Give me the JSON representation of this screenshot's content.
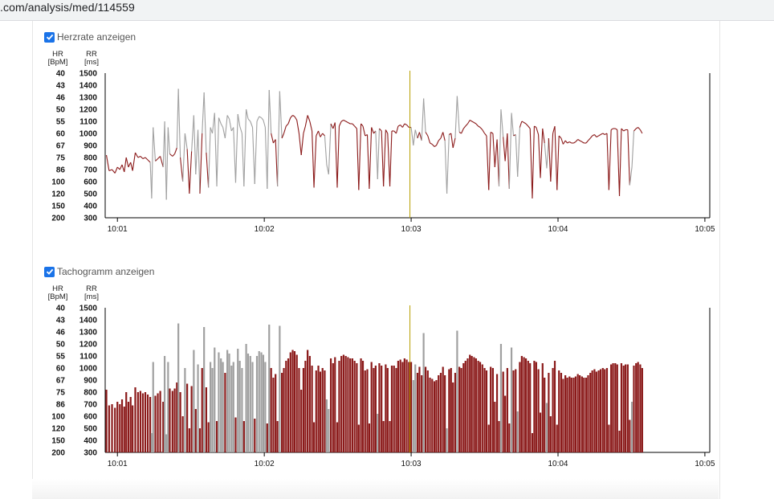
{
  "browser": {
    "url": ".com/analysis/med/114559"
  },
  "hr_panel": {
    "checkbox_label": "Herzrate anzeigen",
    "checked": true,
    "hr_unit": "HR\n[BpM]",
    "rr_unit": "RR\n[ms]"
  },
  "tacho_panel": {
    "checkbox_label": "Tachogramm anzeigen",
    "checked": true,
    "hr_unit": "HR\n[BpM]",
    "rr_unit": "RR\n[ms]"
  },
  "colors": {
    "normal": "#8b1a1a",
    "artifact": "#a0a0a0",
    "cursor": "#b8a000",
    "checkbox": "#1a73e8"
  },
  "chart_data": [
    {
      "type": "line",
      "title": "",
      "y_ticks_rr": [
        "1500",
        "1400",
        "1300",
        "1200",
        "1100",
        "1000",
        "900",
        "800",
        "700",
        "600",
        "500",
        "400",
        "300"
      ],
      "y_ticks_hr": [
        "40",
        "43",
        "46",
        "50",
        "55",
        "60",
        "67",
        "75",
        "86",
        "100",
        "120",
        "150",
        "200"
      ],
      "ylim": [
        300,
        1500
      ],
      "x_ticks": [
        "10:01",
        "10:02",
        "10:03",
        "10:04",
        "10:05"
      ],
      "x_tick_seconds": [
        60,
        120,
        180,
        240,
        300
      ],
      "xlim": [
        55,
        302
      ],
      "cursor_seconds": 179.5,
      "series": []
    },
    {
      "type": "bar",
      "title": "",
      "y_ticks_rr": [
        "1500",
        "1400",
        "1300",
        "1200",
        "1100",
        "1000",
        "900",
        "800",
        "700",
        "600",
        "500",
        "400",
        "300"
      ],
      "y_ticks_hr": [
        "40",
        "43",
        "46",
        "50",
        "55",
        "60",
        "67",
        "75",
        "86",
        "100",
        "120",
        "150",
        "200"
      ],
      "ylim": [
        300,
        1500
      ],
      "x_ticks": [
        "10:01",
        "10:02",
        "10:03",
        "10:04",
        "10:05"
      ],
      "x_tick_seconds": [
        60,
        120,
        180,
        240,
        300
      ],
      "xlim": [
        55,
        302
      ],
      "cursor_seconds": 179.5
    }
  ],
  "rr_samples": [
    {
      "t": 55.5,
      "rr": 820,
      "a": 0
    },
    {
      "t": 56.6,
      "rr": 690,
      "a": 0
    },
    {
      "t": 57.8,
      "rr": 700,
      "a": 0
    },
    {
      "t": 59.0,
      "rr": 670,
      "a": 0
    },
    {
      "t": 60.0,
      "rr": 720,
      "a": 0
    },
    {
      "t": 61.0,
      "rr": 700,
      "a": 0
    },
    {
      "t": 61.9,
      "rr": 740,
      "a": 0
    },
    {
      "t": 62.8,
      "rr": 680,
      "a": 0
    },
    {
      "t": 63.6,
      "rr": 800,
      "a": 0
    },
    {
      "t": 64.5,
      "rr": 720,
      "a": 0
    },
    {
      "t": 65.4,
      "rr": 760,
      "a": 0
    },
    {
      "t": 66.2,
      "rr": 690,
      "a": 0
    },
    {
      "t": 67.3,
      "rr": 840,
      "a": 0
    },
    {
      "t": 68.4,
      "rr": 800,
      "a": 0
    },
    {
      "t": 69.4,
      "rr": 810,
      "a": 0
    },
    {
      "t": 70.4,
      "rr": 790,
      "a": 0
    },
    {
      "t": 71.4,
      "rr": 800,
      "a": 0
    },
    {
      "t": 72.4,
      "rr": 780,
      "a": 0
    },
    {
      "t": 73.4,
      "rr": 760,
      "a": 0
    },
    {
      "t": 74.0,
      "rr": 460,
      "a": 1
    },
    {
      "t": 74.6,
      "rr": 1050,
      "a": 1
    },
    {
      "t": 75.5,
      "rr": 770,
      "a": 0
    },
    {
      "t": 76.5,
      "rr": 790,
      "a": 0
    },
    {
      "t": 77.5,
      "rr": 810,
      "a": 0
    },
    {
      "t": 78.7,
      "rr": 720,
      "a": 0
    },
    {
      "t": 79.3,
      "rr": 1100,
      "a": 1
    },
    {
      "t": 80.0,
      "rr": 450,
      "a": 1
    },
    {
      "t": 80.7,
      "rr": 1050,
      "a": 1
    },
    {
      "t": 81.4,
      "rr": 830,
      "a": 0
    },
    {
      "t": 82.5,
      "rr": 810,
      "a": 0
    },
    {
      "t": 83.4,
      "rr": 830,
      "a": 0
    },
    {
      "t": 84.3,
      "rr": 880,
      "a": 0
    },
    {
      "t": 84.9,
      "rr": 1370,
      "a": 1
    },
    {
      "t": 85.7,
      "rr": 800,
      "a": 0
    },
    {
      "t": 86.7,
      "rr": 600,
      "a": 0
    },
    {
      "t": 87.6,
      "rr": 1000,
      "a": 1
    },
    {
      "t": 88.5,
      "rr": 870,
      "a": 0
    },
    {
      "t": 89.4,
      "rr": 500,
      "a": 0
    },
    {
      "t": 90.3,
      "rr": 850,
      "a": 0
    },
    {
      "t": 91.2,
      "rr": 1150,
      "a": 1
    },
    {
      "t": 92.0,
      "rr": 660,
      "a": 0
    },
    {
      "t": 92.9,
      "rr": 1030,
      "a": 1
    },
    {
      "t": 93.7,
      "rr": 500,
      "a": 0
    },
    {
      "t": 94.6,
      "rr": 1000,
      "a": 0
    },
    {
      "t": 95.4,
      "rr": 1340,
      "a": 1
    },
    {
      "t": 96.3,
      "rr": 840,
      "a": 0
    },
    {
      "t": 97.2,
      "rr": 550,
      "a": 0
    },
    {
      "t": 98.0,
      "rr": 1050,
      "a": 1
    },
    {
      "t": 98.8,
      "rr": 1000,
      "a": 1
    },
    {
      "t": 99.7,
      "rr": 1170,
      "a": 1
    },
    {
      "t": 100.6,
      "rr": 560,
      "a": 0
    },
    {
      "t": 101.4,
      "rr": 1130,
      "a": 1
    },
    {
      "t": 102.3,
      "rr": 1080,
      "a": 1
    },
    {
      "t": 103.1,
      "rr": 1050,
      "a": 1
    },
    {
      "t": 104.0,
      "rr": 960,
      "a": 0
    },
    {
      "t": 104.9,
      "rr": 1150,
      "a": 1
    },
    {
      "t": 105.7,
      "rr": 1120,
      "a": 1
    },
    {
      "t": 106.6,
      "rr": 1020,
      "a": 1
    },
    {
      "t": 107.4,
      "rr": 1050,
      "a": 1
    },
    {
      "t": 108.3,
      "rr": 590,
      "a": 0
    },
    {
      "t": 109.2,
      "rr": 1160,
      "a": 1
    },
    {
      "t": 110.0,
      "rr": 1060,
      "a": 1
    },
    {
      "t": 110.9,
      "rr": 1000,
      "a": 1
    },
    {
      "t": 111.7,
      "rr": 560,
      "a": 0
    },
    {
      "t": 112.6,
      "rr": 1200,
      "a": 1
    },
    {
      "t": 113.4,
      "rr": 1120,
      "a": 1
    },
    {
      "t": 114.3,
      "rr": 1100,
      "a": 1
    },
    {
      "t": 115.2,
      "rr": 1050,
      "a": 1
    },
    {
      "t": 116.1,
      "rr": 580,
      "a": 0
    },
    {
      "t": 117.0,
      "rr": 1100,
      "a": 1
    },
    {
      "t": 117.9,
      "rr": 1140,
      "a": 1
    },
    {
      "t": 118.8,
      "rr": 1130,
      "a": 1
    },
    {
      "t": 119.6,
      "rr": 1110,
      "a": 1
    },
    {
      "t": 120.4,
      "rr": 1050,
      "a": 1
    },
    {
      "t": 121.2,
      "rr": 540,
      "a": 0
    },
    {
      "t": 122.0,
      "rr": 1360,
      "a": 1
    },
    {
      "t": 122.8,
      "rr": 1000,
      "a": 0
    },
    {
      "t": 123.7,
      "rr": 920,
      "a": 0
    },
    {
      "t": 124.6,
      "rr": 950,
      "a": 0
    },
    {
      "t": 125.4,
      "rr": 560,
      "a": 0
    },
    {
      "t": 126.3,
      "rr": 1350,
      "a": 1
    },
    {
      "t": 127.2,
      "rr": 960,
      "a": 0
    },
    {
      "t": 128.0,
      "rr": 1000,
      "a": 0
    },
    {
      "t": 128.9,
      "rr": 1060,
      "a": 0
    },
    {
      "t": 129.8,
      "rr": 1080,
      "a": 0
    },
    {
      "t": 130.7,
      "rr": 1130,
      "a": 0
    },
    {
      "t": 131.6,
      "rr": 1150,
      "a": 0
    },
    {
      "t": 132.4,
      "rr": 1140,
      "a": 0
    },
    {
      "t": 133.3,
      "rr": 1110,
      "a": 0
    },
    {
      "t": 134.2,
      "rr": 1000,
      "a": 0
    },
    {
      "t": 135.1,
      "rr": 820,
      "a": 0
    },
    {
      "t": 136.0,
      "rr": 1000,
      "a": 0
    },
    {
      "t": 136.8,
      "rr": 1060,
      "a": 0
    },
    {
      "t": 137.7,
      "rr": 1150,
      "a": 0
    },
    {
      "t": 138.6,
      "rr": 1100,
      "a": 0
    },
    {
      "t": 139.5,
      "rr": 1020,
      "a": 0
    },
    {
      "t": 140.3,
      "rr": 550,
      "a": 0
    },
    {
      "t": 141.2,
      "rr": 980,
      "a": 0
    },
    {
      "t": 142.1,
      "rr": 1020,
      "a": 0
    },
    {
      "t": 142.9,
      "rr": 970,
      "a": 0
    },
    {
      "t": 143.8,
      "rr": 1000,
      "a": 0
    },
    {
      "t": 144.7,
      "rr": 980,
      "a": 0
    },
    {
      "t": 145.5,
      "rr": 740,
      "a": 1
    },
    {
      "t": 146.3,
      "rr": 660,
      "a": 1
    },
    {
      "t": 147.2,
      "rr": 1080,
      "a": 0
    },
    {
      "t": 148.1,
      "rr": 1040,
      "a": 0
    },
    {
      "t": 148.9,
      "rr": 1090,
      "a": 0
    },
    {
      "t": 149.8,
      "rr": 550,
      "a": 0
    },
    {
      "t": 150.6,
      "rr": 1060,
      "a": 0
    },
    {
      "t": 151.5,
      "rr": 1100,
      "a": 0
    },
    {
      "t": 152.4,
      "rr": 1110,
      "a": 0
    },
    {
      "t": 153.3,
      "rr": 1100,
      "a": 0
    },
    {
      "t": 154.2,
      "rr": 1090,
      "a": 0
    },
    {
      "t": 155.1,
      "rr": 1080,
      "a": 0
    },
    {
      "t": 156.0,
      "rr": 1080,
      "a": 0
    },
    {
      "t": 156.9,
      "rr": 1060,
      "a": 0
    },
    {
      "t": 157.8,
      "rr": 1040,
      "a": 0
    },
    {
      "t": 158.6,
      "rr": 530,
      "a": 0
    },
    {
      "t": 159.5,
      "rr": 1080,
      "a": 0
    },
    {
      "t": 160.3,
      "rr": 1060,
      "a": 0
    },
    {
      "t": 161.2,
      "rr": 980,
      "a": 0
    },
    {
      "t": 162.1,
      "rr": 990,
      "a": 0
    },
    {
      "t": 162.9,
      "rr": 540,
      "a": 0
    },
    {
      "t": 163.8,
      "rr": 1050,
      "a": 0
    },
    {
      "t": 164.7,
      "rr": 1000,
      "a": 0
    },
    {
      "t": 165.5,
      "rr": 1020,
      "a": 0
    },
    {
      "t": 166.3,
      "rr": 620,
      "a": 1
    },
    {
      "t": 167.0,
      "rr": 1040,
      "a": 0
    },
    {
      "t": 167.9,
      "rr": 1020,
      "a": 0
    },
    {
      "t": 168.7,
      "rr": 560,
      "a": 0
    },
    {
      "t": 169.6,
      "rr": 1030,
      "a": 0
    },
    {
      "t": 170.4,
      "rr": 1000,
      "a": 0
    },
    {
      "t": 171.3,
      "rr": 560,
      "a": 0
    },
    {
      "t": 172.1,
      "rr": 1020,
      "a": 0
    },
    {
      "t": 173.0,
      "rr": 1020,
      "a": 0
    },
    {
      "t": 173.9,
      "rr": 1000,
      "a": 0
    },
    {
      "t": 174.7,
      "rr": 1060,
      "a": 0
    },
    {
      "t": 175.6,
      "rr": 1070,
      "a": 0
    },
    {
      "t": 176.5,
      "rr": 1050,
      "a": 0
    },
    {
      "t": 177.3,
      "rr": 1080,
      "a": 0
    },
    {
      "t": 178.2,
      "rr": 1070,
      "a": 0
    },
    {
      "t": 179.1,
      "rr": 1050,
      "a": 0
    },
    {
      "t": 180.0,
      "rr": 1050,
      "a": 0
    },
    {
      "t": 180.9,
      "rr": 900,
      "a": 1
    },
    {
      "t": 181.7,
      "rr": 1030,
      "a": 1
    },
    {
      "t": 182.6,
      "rr": 960,
      "a": 0
    },
    {
      "t": 183.4,
      "rr": 1010,
      "a": 0
    },
    {
      "t": 184.3,
      "rr": 940,
      "a": 0
    },
    {
      "t": 185.1,
      "rr": 1290,
      "a": 1
    },
    {
      "t": 185.9,
      "rr": 1010,
      "a": 0
    },
    {
      "t": 186.8,
      "rr": 980,
      "a": 0
    },
    {
      "t": 187.7,
      "rr": 920,
      "a": 0
    },
    {
      "t": 188.6,
      "rr": 910,
      "a": 0
    },
    {
      "t": 189.5,
      "rr": 890,
      "a": 0
    },
    {
      "t": 190.3,
      "rr": 900,
      "a": 0
    },
    {
      "t": 191.2,
      "rr": 940,
      "a": 0
    },
    {
      "t": 192.1,
      "rr": 960,
      "a": 0
    },
    {
      "t": 193.0,
      "rr": 1010,
      "a": 0
    },
    {
      "t": 193.8,
      "rr": 940,
      "a": 0
    },
    {
      "t": 194.6,
      "rr": 500,
      "a": 1
    },
    {
      "t": 195.5,
      "rr": 990,
      "a": 0
    },
    {
      "t": 196.3,
      "rr": 1000,
      "a": 0
    },
    {
      "t": 197.1,
      "rr": 880,
      "a": 0
    },
    {
      "t": 198.0,
      "rr": 960,
      "a": 0
    },
    {
      "t": 198.8,
      "rr": 1310,
      "a": 1
    },
    {
      "t": 199.7,
      "rr": 1010,
      "a": 0
    },
    {
      "t": 200.5,
      "rr": 1000,
      "a": 0
    },
    {
      "t": 201.4,
      "rr": 1040,
      "a": 0
    },
    {
      "t": 202.2,
      "rr": 1060,
      "a": 0
    },
    {
      "t": 203.1,
      "rr": 1080,
      "a": 0
    },
    {
      "t": 204.0,
      "rr": 1110,
      "a": 0
    },
    {
      "t": 204.8,
      "rr": 1100,
      "a": 0
    },
    {
      "t": 205.7,
      "rr": 1090,
      "a": 0
    },
    {
      "t": 206.5,
      "rr": 1080,
      "a": 0
    },
    {
      "t": 207.4,
      "rr": 1060,
      "a": 0
    },
    {
      "t": 208.2,
      "rr": 1050,
      "a": 0
    },
    {
      "t": 209.1,
      "rr": 1030,
      "a": 0
    },
    {
      "t": 210.0,
      "rr": 1000,
      "a": 0
    },
    {
      "t": 210.8,
      "rr": 980,
      "a": 0
    },
    {
      "t": 211.7,
      "rr": 530,
      "a": 0
    },
    {
      "t": 212.5,
      "rr": 1010,
      "a": 0
    },
    {
      "t": 213.4,
      "rr": 1000,
      "a": 0
    },
    {
      "t": 214.2,
      "rr": 720,
      "a": 0
    },
    {
      "t": 215.1,
      "rr": 950,
      "a": 0
    },
    {
      "t": 215.9,
      "rr": 560,
      "a": 0
    },
    {
      "t": 216.7,
      "rr": 1200,
      "a": 1
    },
    {
      "t": 217.6,
      "rr": 970,
      "a": 0
    },
    {
      "t": 218.4,
      "rr": 770,
      "a": 0
    },
    {
      "t": 219.3,
      "rr": 1000,
      "a": 0
    },
    {
      "t": 220.1,
      "rr": 540,
      "a": 0
    },
    {
      "t": 221.0,
      "rr": 1170,
      "a": 1
    },
    {
      "t": 221.8,
      "rr": 980,
      "a": 0
    },
    {
      "t": 222.7,
      "rr": 990,
      "a": 0
    },
    {
      "t": 223.5,
      "rr": 640,
      "a": 1
    },
    {
      "t": 224.4,
      "rr": 1050,
      "a": 0
    },
    {
      "t": 225.2,
      "rr": 1100,
      "a": 0
    },
    {
      "t": 226.1,
      "rr": 1090,
      "a": 0
    },
    {
      "t": 226.9,
      "rr": 1080,
      "a": 0
    },
    {
      "t": 227.8,
      "rr": 1060,
      "a": 0
    },
    {
      "t": 228.6,
      "rr": 1040,
      "a": 0
    },
    {
      "t": 229.5,
      "rr": 460,
      "a": 0
    },
    {
      "t": 230.3,
      "rr": 1060,
      "a": 0
    },
    {
      "t": 231.1,
      "rr": 1050,
      "a": 0
    },
    {
      "t": 232.0,
      "rr": 990,
      "a": 0
    },
    {
      "t": 232.8,
      "rr": 630,
      "a": 0
    },
    {
      "t": 233.7,
      "rr": 1040,
      "a": 0
    },
    {
      "t": 234.5,
      "rr": 920,
      "a": 0
    },
    {
      "t": 235.4,
      "rr": 710,
      "a": 1
    },
    {
      "t": 236.2,
      "rr": 960,
      "a": 0
    },
    {
      "t": 237.0,
      "rr": 600,
      "a": 0
    },
    {
      "t": 237.9,
      "rr": 1000,
      "a": 0
    },
    {
      "t": 238.7,
      "rr": 1060,
      "a": 0
    },
    {
      "t": 239.6,
      "rr": 530,
      "a": 0
    },
    {
      "t": 240.4,
      "rr": 980,
      "a": 0
    },
    {
      "t": 241.3,
      "rr": 960,
      "a": 0
    },
    {
      "t": 242.1,
      "rr": 910,
      "a": 0
    },
    {
      "t": 243.0,
      "rr": 940,
      "a": 0
    },
    {
      "t": 243.8,
      "rr": 920,
      "a": 0
    },
    {
      "t": 244.7,
      "rr": 930,
      "a": 0
    },
    {
      "t": 245.5,
      "rr": 920,
      "a": 0
    },
    {
      "t": 246.4,
      "rr": 920,
      "a": 0
    },
    {
      "t": 247.2,
      "rr": 930,
      "a": 0
    },
    {
      "t": 248.1,
      "rr": 950,
      "a": 0
    },
    {
      "t": 248.9,
      "rr": 940,
      "a": 0
    },
    {
      "t": 249.8,
      "rr": 930,
      "a": 0
    },
    {
      "t": 250.6,
      "rr": 920,
      "a": 0
    },
    {
      "t": 251.5,
      "rr": 920,
      "a": 0
    },
    {
      "t": 252.3,
      "rr": 940,
      "a": 0
    },
    {
      "t": 253.2,
      "rr": 960,
      "a": 0
    },
    {
      "t": 254.0,
      "rr": 980,
      "a": 0
    },
    {
      "t": 254.9,
      "rr": 990,
      "a": 0
    },
    {
      "t": 255.7,
      "rr": 970,
      "a": 0
    },
    {
      "t": 256.6,
      "rr": 980,
      "a": 0
    },
    {
      "t": 257.4,
      "rr": 990,
      "a": 0
    },
    {
      "t": 258.3,
      "rr": 1000,
      "a": 0
    },
    {
      "t": 259.1,
      "rr": 990,
      "a": 0
    },
    {
      "t": 260.0,
      "rr": 1000,
      "a": 0
    },
    {
      "t": 260.8,
      "rr": 530,
      "a": 0
    },
    {
      "t": 261.7,
      "rr": 1030,
      "a": 0
    },
    {
      "t": 262.5,
      "rr": 1040,
      "a": 0
    },
    {
      "t": 263.4,
      "rr": 1040,
      "a": 0
    },
    {
      "t": 264.2,
      "rr": 1030,
      "a": 0
    },
    {
      "t": 265.1,
      "rr": 480,
      "a": 0
    },
    {
      "t": 265.9,
      "rr": 1040,
      "a": 0
    },
    {
      "t": 266.8,
      "rr": 1020,
      "a": 0
    },
    {
      "t": 267.6,
      "rr": 1030,
      "a": 0
    },
    {
      "t": 268.5,
      "rr": 1030,
      "a": 0
    },
    {
      "t": 269.3,
      "rr": 570,
      "a": 0
    },
    {
      "t": 270.2,
      "rr": 720,
      "a": 1
    },
    {
      "t": 271.0,
      "rr": 1020,
      "a": 0
    },
    {
      "t": 271.9,
      "rr": 1040,
      "a": 0
    },
    {
      "t": 272.7,
      "rr": 1050,
      "a": 0
    },
    {
      "t": 273.6,
      "rr": 1030,
      "a": 0
    },
    {
      "t": 274.4,
      "rr": 1000,
      "a": 0
    }
  ]
}
